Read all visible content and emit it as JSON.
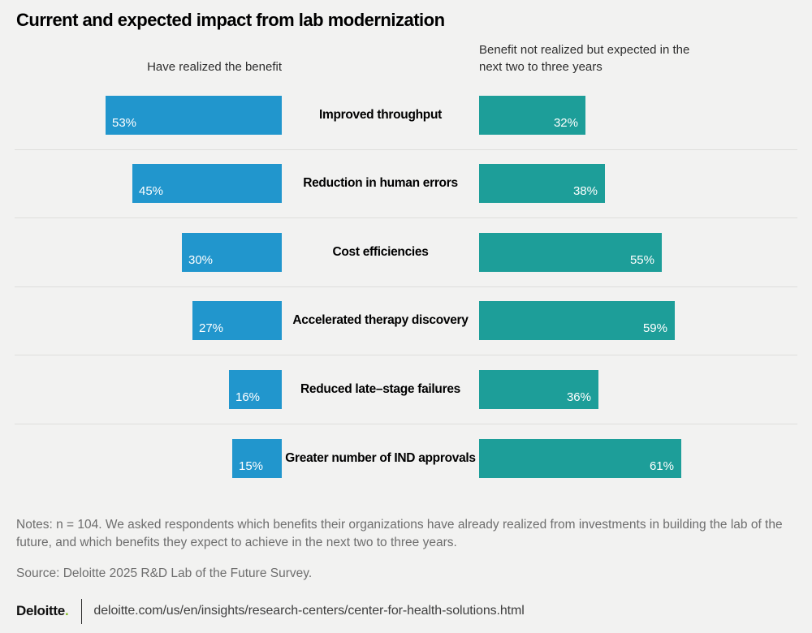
{
  "title": "Current and expected impact from lab modernization",
  "chart_data": {
    "type": "bar",
    "layout": "diverging-butterfly",
    "left_header": "Have realized the benefit",
    "right_header": "Benefit not realized but expected in the next two to three years",
    "categories": [
      "Improved throughput",
      "Reduction in human errors",
      "Cost efficiencies",
      "Accelerated therapy discovery",
      "Reduced late–stage failures",
      "Greater number of IND approvals"
    ],
    "series": [
      {
        "name": "Have realized the benefit",
        "color": "#2196CD",
        "values": [
          53,
          45,
          30,
          27,
          16,
          15
        ]
      },
      {
        "name": "Benefit not realized but expected in the next two to three years",
        "color": "#1D9E99",
        "values": [
          32,
          38,
          55,
          59,
          36,
          61
        ]
      }
    ],
    "value_suffix": "%",
    "xlim": [
      0,
      100
    ],
    "grid": "row-dividers-only",
    "legend_position": "column-headers"
  },
  "notes": "Notes: n = 104. We asked respondents which benefits their organizations have already realized from investments in building the lab of the future, and which benefits they expect to achieve in the next two to three years.",
  "source": "Source: Deloitte 2025 R&D Lab of the Future Survey.",
  "footer": {
    "brand": "Deloitte",
    "brand_dot": ".",
    "url": "deloitte.com/us/en/insights/research-centers/center-for-health-solutions.html"
  },
  "colors": {
    "background": "#F2F2F1",
    "realized_bar": "#2196CD",
    "expected_bar": "#1D9E99",
    "divider": "#DEDEDC",
    "brand_green": "#86BC25"
  }
}
